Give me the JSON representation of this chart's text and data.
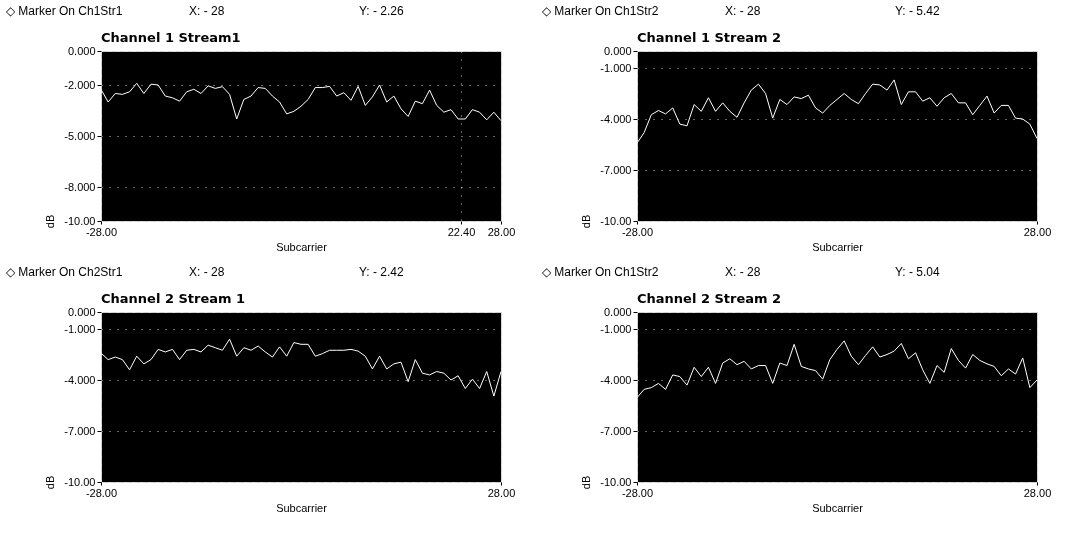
{
  "chart_data": [
    {
      "type": "line",
      "title": "Channel 1 Stream1",
      "xlabel": "Subcarrier",
      "ylabel": "dB",
      "annotations": [
        "◇ Marker On Ch1Str1",
        "X: - 28",
        "Y: - 2.26"
      ],
      "grid": true,
      "x": [
        -28,
        -27,
        -26,
        -25,
        -24,
        -23,
        -22,
        -21,
        -20,
        -19,
        -18,
        -17,
        -16,
        -15,
        -14,
        -13,
        -12,
        -11,
        -10,
        -9,
        -8,
        -7,
        -6,
        -5,
        -4,
        -3,
        -2,
        -1,
        0,
        1,
        2,
        3,
        4,
        5,
        6,
        7,
        8,
        9,
        10,
        11,
        12,
        13,
        14,
        15,
        16,
        17,
        18,
        19,
        20,
        21,
        22,
        23,
        24,
        25,
        26,
        27,
        28
      ],
      "series": [
        {
          "color": "#ffffff",
          "values": [
            -2.26,
            -3.0,
            -2.5,
            -2.55,
            -2.4,
            -1.9,
            -2.5,
            -1.95,
            -2.0,
            -2.65,
            -2.75,
            -2.95,
            -2.4,
            -2.25,
            -2.5,
            -2.05,
            -2.2,
            -2.1,
            -2.55,
            -4.0,
            -2.85,
            -2.65,
            -2.15,
            -2.2,
            -2.65,
            -3.0,
            -3.7,
            -3.55,
            -3.25,
            -2.85,
            -2.15,
            -2.15,
            -2.08,
            -2.65,
            -2.45,
            -2.9,
            -2.08,
            -3.2,
            -2.7,
            -2.0,
            -3.0,
            -2.65,
            -3.4,
            -3.85,
            -2.95,
            -3.1,
            -2.3,
            -3.2,
            -3.6,
            -3.45,
            -4.0,
            -4.0,
            -3.45,
            -3.6,
            -4.05,
            -3.6,
            -4.1
          ]
        }
      ],
      "xlim": [
        -28,
        28
      ],
      "xticks": [
        {
          "value": -28,
          "label": "-28.00"
        },
        {
          "value": 22.4,
          "label": "22.40"
        },
        {
          "value": 28,
          "label": "28.00"
        }
      ],
      "ylim": [
        -10,
        0
      ],
      "yticks": [
        {
          "value": 0,
          "label": "0.000"
        },
        {
          "value": -2,
          "label": "-2.000"
        },
        {
          "value": -5,
          "label": "-5.000"
        },
        {
          "value": -8,
          "label": "-8.000"
        },
        {
          "value": -10,
          "label": "-10.00"
        }
      ]
    },
    {
      "type": "line",
      "title": "Channel 1 Stream 2",
      "xlabel": "Subcarrier",
      "ylabel": "dB",
      "annotations": [
        "◇ Marker On Ch1Str2",
        "X: - 28",
        "Y: - 5.42"
      ],
      "grid": true,
      "x": [
        -28,
        -27,
        -26,
        -25,
        -24,
        -23,
        -22,
        -21,
        -20,
        -19,
        -18,
        -17,
        -16,
        -15,
        -14,
        -13,
        -12,
        -11,
        -10,
        -9,
        -8,
        -7,
        -6,
        -5,
        -4,
        -3,
        -2,
        -1,
        0,
        1,
        2,
        3,
        4,
        5,
        6,
        7,
        8,
        9,
        10,
        11,
        12,
        13,
        14,
        15,
        16,
        17,
        18,
        19,
        20,
        21,
        22,
        23,
        24,
        25,
        26,
        27,
        28
      ],
      "series": [
        {
          "color": "#ffffff",
          "values": [
            -5.42,
            -4.8,
            -3.75,
            -3.5,
            -3.7,
            -3.35,
            -4.3,
            -4.4,
            -3.15,
            -3.55,
            -2.75,
            -3.55,
            -3.05,
            -3.55,
            -3.9,
            -3.05,
            -2.3,
            -1.95,
            -2.5,
            -3.95,
            -2.85,
            -3.15,
            -2.7,
            -2.8,
            -2.6,
            -3.35,
            -3.65,
            -3.2,
            -2.85,
            -2.5,
            -2.85,
            -3.1,
            -2.5,
            -1.95,
            -2.0,
            -2.3,
            -1.7,
            -3.15,
            -2.4,
            -2.4,
            -2.95,
            -2.75,
            -3.25,
            -2.75,
            -2.5,
            -3.05,
            -3.05,
            -3.75,
            -3.2,
            -2.65,
            -3.65,
            -3.2,
            -3.2,
            -3.95,
            -4.0,
            -4.3,
            -5.15
          ]
        }
      ],
      "xlim": [
        -28,
        28
      ],
      "xticks": [
        {
          "value": -28,
          "label": "-28.00"
        },
        {
          "value": 28,
          "label": "28.00"
        }
      ],
      "ylim": [
        -10,
        0
      ],
      "yticks": [
        {
          "value": 0,
          "label": "0.000"
        },
        {
          "value": -1,
          "label": "-1.000"
        },
        {
          "value": -4,
          "label": "-4.000"
        },
        {
          "value": -7,
          "label": "-7.000"
        },
        {
          "value": -10,
          "label": "-10.00"
        }
      ]
    },
    {
      "type": "line",
      "title": "Channel 2 Stream 1",
      "xlabel": "Subcarrier",
      "ylabel": "dB",
      "annotations": [
        "◇ Marker On Ch2Str1",
        "X: - 28",
        "Y: - 2.42"
      ],
      "grid": true,
      "x": [
        -28,
        -27,
        -26,
        -25,
        -24,
        -23,
        -22,
        -21,
        -20,
        -19,
        -18,
        -17,
        -16,
        -15,
        -14,
        -13,
        -12,
        -11,
        -10,
        -9,
        -8,
        -7,
        -6,
        -5,
        -4,
        -3,
        -2,
        -1,
        0,
        1,
        2,
        3,
        4,
        5,
        6,
        7,
        8,
        9,
        10,
        11,
        12,
        13,
        14,
        15,
        16,
        17,
        18,
        19,
        20,
        21,
        22,
        23,
        24,
        25,
        26,
        27,
        28
      ],
      "series": [
        {
          "color": "#ffffff",
          "values": [
            -2.42,
            -2.8,
            -2.65,
            -2.8,
            -3.4,
            -2.6,
            -3.05,
            -2.8,
            -2.2,
            -2.35,
            -2.2,
            -2.8,
            -2.25,
            -2.2,
            -2.35,
            -1.95,
            -2.1,
            -2.25,
            -1.6,
            -2.6,
            -2.1,
            -2.25,
            -2.0,
            -2.35,
            -2.65,
            -2.05,
            -2.6,
            -1.8,
            -1.9,
            -1.9,
            -2.6,
            -2.45,
            -2.25,
            -2.25,
            -2.25,
            -2.2,
            -2.3,
            -2.6,
            -3.35,
            -2.6,
            -3.35,
            -3.05,
            -2.95,
            -4.1,
            -2.8,
            -3.6,
            -3.7,
            -3.5,
            -3.6,
            -4.0,
            -3.75,
            -4.5,
            -3.95,
            -4.5,
            -3.5,
            -4.95,
            -3.5
          ]
        }
      ],
      "xlim": [
        -28,
        28
      ],
      "xticks": [
        {
          "value": -28,
          "label": "-28.00"
        },
        {
          "value": 28,
          "label": "28.00"
        }
      ],
      "ylim": [
        -10,
        0
      ],
      "yticks": [
        {
          "value": 0,
          "label": "0.000"
        },
        {
          "value": -1,
          "label": "-1.000"
        },
        {
          "value": -4,
          "label": "-4.000"
        },
        {
          "value": -7,
          "label": "-7.000"
        },
        {
          "value": -10,
          "label": "-10.00"
        }
      ]
    },
    {
      "type": "line",
      "title": "Channel 2 Stream 2",
      "xlabel": "Subcarrier",
      "ylabel": "dB",
      "annotations": [
        "◇ Marker On Ch1Str2",
        "X: - 28",
        "Y: - 5.04"
      ],
      "grid": true,
      "x": [
        -28,
        -27,
        -26,
        -25,
        -24,
        -23,
        -22,
        -21,
        -20,
        -19,
        -18,
        -17,
        -16,
        -15,
        -14,
        -13,
        -12,
        -11,
        -10,
        -9,
        -8,
        -7,
        -6,
        -5,
        -4,
        -3,
        -2,
        -1,
        0,
        1,
        2,
        3,
        4,
        5,
        6,
        7,
        8,
        9,
        10,
        11,
        12,
        13,
        14,
        15,
        16,
        17,
        18,
        19,
        20,
        21,
        22,
        23,
        24,
        25,
        26,
        27,
        28
      ],
      "series": [
        {
          "color": "#ffffff",
          "values": [
            -5.04,
            -4.55,
            -4.45,
            -4.2,
            -4.55,
            -3.7,
            -3.8,
            -4.3,
            -3.25,
            -3.8,
            -3.25,
            -4.2,
            -3.0,
            -2.75,
            -3.1,
            -2.9,
            -3.35,
            -3.15,
            -3.15,
            -4.2,
            -3.0,
            -3.15,
            -1.9,
            -3.2,
            -3.35,
            -3.45,
            -3.95,
            -2.8,
            -2.2,
            -1.7,
            -2.6,
            -3.1,
            -2.55,
            -2.05,
            -2.65,
            -2.5,
            -2.3,
            -1.85,
            -2.75,
            -2.4,
            -3.4,
            -4.2,
            -3.15,
            -3.55,
            -2.15,
            -2.85,
            -3.3,
            -2.5,
            -2.85,
            -3.05,
            -3.2,
            -3.75,
            -3.35,
            -3.65,
            -2.7,
            -4.45,
            -4.0
          ]
        }
      ],
      "xlim": [
        -28,
        28
      ],
      "xticks": [
        {
          "value": -28,
          "label": "-28.00"
        },
        {
          "value": 28,
          "label": "28.00"
        }
      ],
      "ylim": [
        -10,
        0
      ],
      "yticks": [
        {
          "value": 0,
          "label": "0.000"
        },
        {
          "value": -1,
          "label": "-1.000"
        },
        {
          "value": -4,
          "label": "-4.000"
        },
        {
          "value": -7,
          "label": "-7.000"
        },
        {
          "value": -10,
          "label": "-10.00"
        }
      ]
    }
  ]
}
